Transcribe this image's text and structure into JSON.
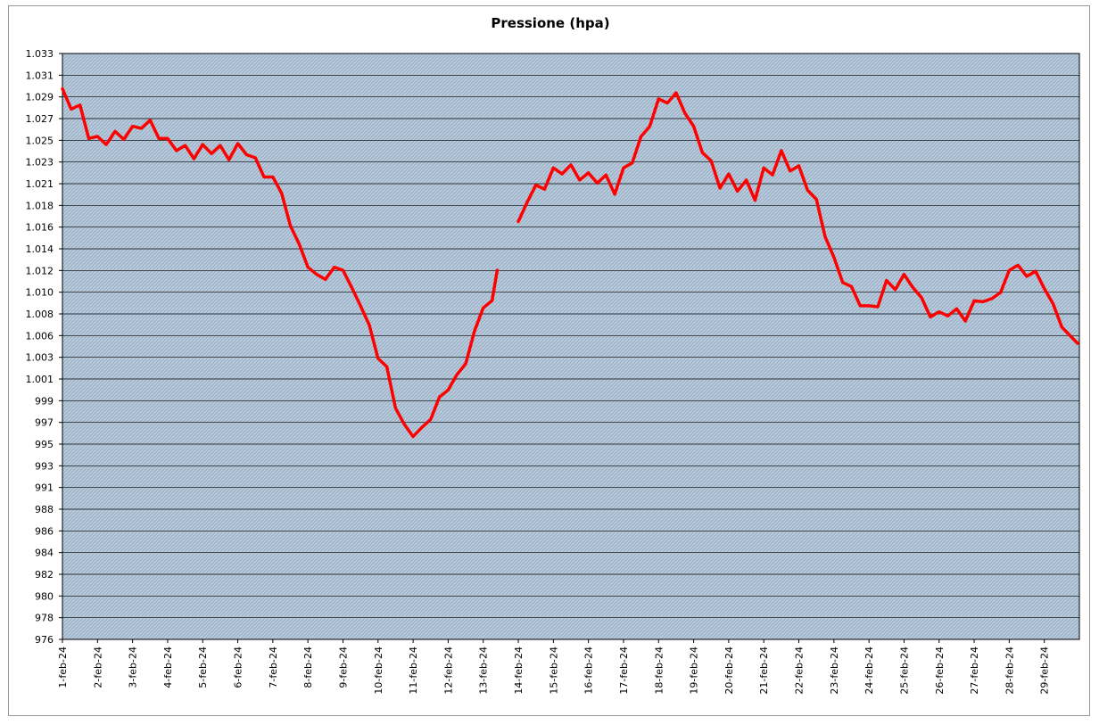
{
  "chart_data": {
    "type": "line",
    "title": "Pressione (hpa)",
    "x": [
      1,
      1.25,
      1.5,
      1.75,
      2,
      2.25,
      2.5,
      2.75,
      3,
      3.25,
      3.5,
      3.75,
      4,
      4.25,
      4.5,
      4.75,
      5,
      5.25,
      5.5,
      5.75,
      6,
      6.25,
      6.5,
      6.75,
      7,
      7.25,
      7.5,
      7.75,
      8,
      8.25,
      8.5,
      8.75,
      9,
      9.25,
      9.5,
      9.75,
      10,
      10.25,
      10.5,
      10.75,
      11,
      11.25,
      11.5,
      11.75,
      12,
      12.25,
      12.5,
      12.75,
      13,
      13.25,
      13.4,
      13.7,
      14,
      14.25,
      14.5,
      14.75,
      15,
      15.25,
      15.5,
      15.75,
      16,
      16.25,
      16.5,
      16.75,
      17,
      17.25,
      17.5,
      17.75,
      18,
      18.25,
      18.5,
      18.75,
      19,
      19.25,
      19.5,
      19.75,
      20,
      20.25,
      20.5,
      20.75,
      21,
      21.25,
      21.5,
      21.75,
      22,
      22.25,
      22.5,
      22.75,
      23,
      23.25,
      23.5,
      23.75,
      24,
      24.25,
      24.5,
      24.75,
      25,
      25.25,
      25.5,
      25.75,
      26,
      26.25,
      26.5,
      26.75,
      27,
      27.25,
      27.5,
      27.75,
      28,
      28.25,
      28.5,
      28.75,
      29,
      29.25,
      29.5,
      29.75,
      29.95
    ],
    "series": [
      {
        "color": "#ff0000",
        "values": [
          1029.9,
          1027.9,
          1028.3,
          1025.0,
          1025.2,
          1024.4,
          1025.7,
          1024.9,
          1026.2,
          1026.0,
          1026.8,
          1025.0,
          1025.0,
          1023.8,
          1024.3,
          1023.0,
          1024.4,
          1023.5,
          1024.3,
          1022.9,
          1024.5,
          1023.4,
          1023.1,
          1021.2,
          1021.2,
          1019.6,
          1016.4,
          1014.6,
          1012.3,
          1011.6,
          1011.1,
          1012.3,
          1012.0,
          1010.3,
          1008.5,
          1006.6,
          1003.3,
          1002.5,
          998.4,
          996.8,
          995.6,
          996.5,
          997.3,
          999.5,
          1000.2,
          1001.7,
          1002.8,
          1006.0,
          1008.3,
          1009.0,
          1012.0,
          null,
          1016.8,
          1018.7,
          1020.4,
          1020.0,
          1022.1,
          1021.5,
          1022.4,
          1020.9,
          1021.6,
          1020.6,
          1021.4,
          1019.5,
          1022.1,
          1022.6,
          1025.2,
          1026.2,
          1028.9,
          1028.5,
          1029.5,
          1027.5,
          1026.2,
          1023.6,
          1022.8,
          1020.1,
          1021.5,
          1019.8,
          1020.9,
          1018.9,
          1022.1,
          1021.4,
          1023.8,
          1021.8,
          1022.3,
          1019.9,
          1019.0,
          1015.3,
          1013.3,
          1010.8,
          1010.4,
          1008.5,
          1008.5,
          1008.4,
          1011.0,
          1010.1,
          1011.6,
          1010.3,
          1009.3,
          1007.4,
          1007.9,
          1007.5,
          1008.2,
          1007.0,
          1009.0,
          1008.9,
          1009.2,
          1009.8,
          1012.0,
          1012.5,
          1011.4,
          1011.9,
          1010.2,
          1008.7,
          1006.4,
          1005.5,
          1004.8
        ]
      }
    ],
    "xlim": [
      1,
      30
    ],
    "xticks": [
      {
        "value": 1,
        "label": "1-feb-24"
      },
      {
        "value": 2,
        "label": "2-feb-24"
      },
      {
        "value": 3,
        "label": "3-feb-24"
      },
      {
        "value": 4,
        "label": "4-feb-24"
      },
      {
        "value": 5,
        "label": "5-feb-24"
      },
      {
        "value": 6,
        "label": "6-feb-24"
      },
      {
        "value": 7,
        "label": "7-feb-24"
      },
      {
        "value": 8,
        "label": "8-feb-24"
      },
      {
        "value": 9,
        "label": "9-feb-24"
      },
      {
        "value": 10,
        "label": "10-feb-24"
      },
      {
        "value": 11,
        "label": "11-feb-24"
      },
      {
        "value": 12,
        "label": "12-feb-24"
      },
      {
        "value": 13,
        "label": "13-feb-24"
      },
      {
        "value": 14,
        "label": "14-feb-24"
      },
      {
        "value": 15,
        "label": "15-feb-24"
      },
      {
        "value": 16,
        "label": "16-feb-24"
      },
      {
        "value": 17,
        "label": "17-feb-24"
      },
      {
        "value": 18,
        "label": "18-feb-24"
      },
      {
        "value": 19,
        "label": "19-feb-24"
      },
      {
        "value": 20,
        "label": "20-feb-24"
      },
      {
        "value": 21,
        "label": "21-feb-24"
      },
      {
        "value": 22,
        "label": "22-feb-24"
      },
      {
        "value": 23,
        "label": "23-feb-24"
      },
      {
        "value": 24,
        "label": "24-feb-24"
      },
      {
        "value": 25,
        "label": "25-feb-24"
      },
      {
        "value": 26,
        "label": "26-feb-24"
      },
      {
        "value": 27,
        "label": "27-feb-24"
      },
      {
        "value": 28,
        "label": "28-feb-24"
      },
      {
        "value": 29,
        "label": "29-feb-24"
      }
    ],
    "ylim": [
      975.6,
      1033.38
    ],
    "yticks": [
      {
        "value": 975.6,
        "label": "976"
      },
      {
        "value": 977.74,
        "label": "978"
      },
      {
        "value": 979.88,
        "label": "980"
      },
      {
        "value": 982.02,
        "label": "982"
      },
      {
        "value": 984.16,
        "label": "984"
      },
      {
        "value": 986.3,
        "label": "986"
      },
      {
        "value": 988.44,
        "label": "988"
      },
      {
        "value": 990.58,
        "label": "991"
      },
      {
        "value": 992.72,
        "label": "993"
      },
      {
        "value": 994.86,
        "label": "995"
      },
      {
        "value": 997.0,
        "label": "997"
      },
      {
        "value": 999.14,
        "label": "999"
      },
      {
        "value": 1001.28,
        "label": "1.001"
      },
      {
        "value": 1003.42,
        "label": "1.003"
      },
      {
        "value": 1005.56,
        "label": "1.006"
      },
      {
        "value": 1007.7,
        "label": "1.008"
      },
      {
        "value": 1009.84,
        "label": "1.010"
      },
      {
        "value": 1011.98,
        "label": "1.012"
      },
      {
        "value": 1014.12,
        "label": "1.014"
      },
      {
        "value": 1016.26,
        "label": "1.016"
      },
      {
        "value": 1018.4,
        "label": "1.018"
      },
      {
        "value": 1020.54,
        "label": "1.021"
      },
      {
        "value": 1022.68,
        "label": "1.023"
      },
      {
        "value": 1024.82,
        "label": "1.025"
      },
      {
        "value": 1026.96,
        "label": "1.027"
      },
      {
        "value": 1029.1,
        "label": "1.029"
      },
      {
        "value": 1031.24,
        "label": "1.031"
      },
      {
        "value": 1033.38,
        "label": "1.033"
      }
    ],
    "grid": true
  }
}
